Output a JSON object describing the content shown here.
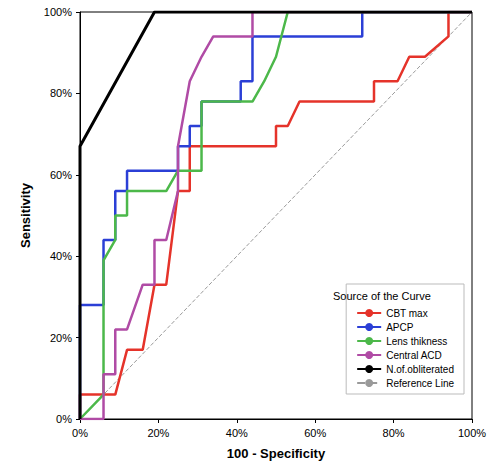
{
  "chart_data": {
    "type": "line",
    "x_label": "100 - Specificity",
    "y_label": "Sensitivity",
    "legend_title": "Source of the Curve",
    "legend": "lower right",
    "grid": false,
    "marker": "none",
    "xlim": [
      0,
      100
    ],
    "ylim": [
      0,
      100
    ],
    "xticks": [
      {
        "value": 0,
        "label": "0%"
      },
      {
        "value": 20,
        "label": "20%"
      },
      {
        "value": 40,
        "label": "40%"
      },
      {
        "value": 60,
        "label": "60%"
      },
      {
        "value": 80,
        "label": "80%"
      },
      {
        "value": 100,
        "label": "100%"
      }
    ],
    "yticks": [
      {
        "value": 0,
        "label": "0%"
      },
      {
        "value": 20,
        "label": "20%"
      },
      {
        "value": 40,
        "label": "40%"
      },
      {
        "value": 60,
        "label": "60%"
      },
      {
        "value": 80,
        "label": "80%"
      },
      {
        "value": 100,
        "label": "100%"
      }
    ],
    "series": [
      {
        "name": "CBT max",
        "color": "#e5332a",
        "line_style": "solid",
        "x": [
          0,
          0,
          9,
          12,
          16,
          19,
          22,
          25,
          28,
          28,
          50,
          50,
          53,
          56,
          75,
          75,
          81,
          84,
          88,
          94,
          94,
          100
        ],
        "values": [
          0,
          6,
          6,
          17,
          17,
          33,
          33,
          56,
          56,
          67,
          67,
          72,
          72,
          78,
          78,
          83,
          83,
          89,
          89,
          94,
          100,
          100
        ]
      },
      {
        "name": "APCP",
        "color": "#2b3fd6",
        "line_style": "solid",
        "x": [
          0,
          0,
          6,
          6,
          9,
          9,
          12,
          12,
          25,
          25,
          28,
          28,
          31,
          31,
          41,
          41,
          44,
          44,
          72,
          72,
          100
        ],
        "values": [
          0,
          28,
          28,
          44,
          44,
          56,
          56,
          61,
          61,
          67,
          67,
          72,
          72,
          78,
          78,
          83,
          83,
          94,
          94,
          100,
          100
        ]
      },
      {
        "name": "Lens thikness",
        "color": "#4cb84a",
        "line_style": "solid",
        "x": [
          0,
          6,
          6,
          9,
          9,
          12,
          12,
          22,
          25,
          31,
          31,
          44,
          47,
          50,
          53,
          100
        ],
        "values": [
          0,
          6,
          39,
          44,
          50,
          50,
          56,
          56,
          61,
          61,
          78,
          78,
          83,
          89,
          100,
          100
        ]
      },
      {
        "name": "Central ACD",
        "color": "#b04ba5",
        "line_style": "solid",
        "x": [
          0,
          6,
          6,
          9,
          9,
          12,
          16,
          19,
          19,
          22,
          25,
          25,
          28,
          31,
          34,
          44,
          44,
          100
        ],
        "values": [
          0,
          0,
          11,
          11,
          22,
          22,
          33,
          33,
          44,
          44,
          56,
          67,
          83,
          89,
          94,
          94,
          100,
          100
        ]
      },
      {
        "name": "N.of.obliterated",
        "color": "#000000",
        "line_style": "solid",
        "x": [
          0,
          0,
          19,
          100
        ],
        "values": [
          0,
          67,
          100,
          100
        ]
      },
      {
        "name": "Reference Line",
        "color": "#9a9a9a",
        "line_style": "dashed",
        "x": [
          0,
          100
        ],
        "values": [
          0,
          100
        ]
      }
    ]
  }
}
